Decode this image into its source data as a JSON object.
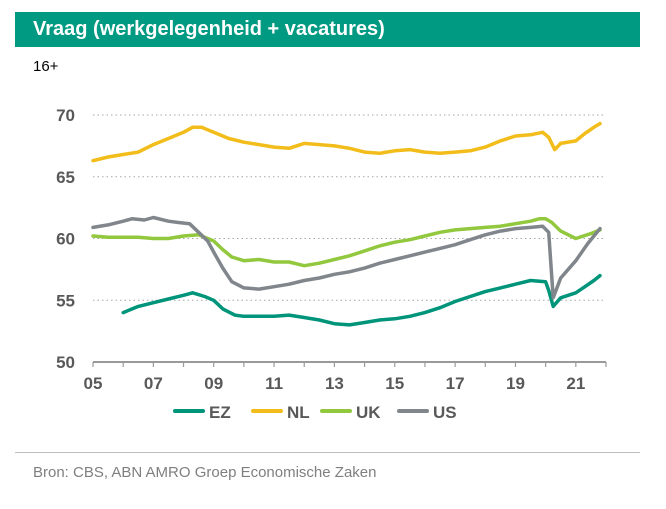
{
  "header": {
    "title": "Vraag (werkgelegenheid + vacatures)",
    "subtitle": "16+"
  },
  "source": "Bron: CBS, ABN AMRO Groep Economische Zaken",
  "colors": {
    "title_bg": "#009a82",
    "EZ": "#00947a",
    "NL": "#f2bd1a",
    "UK": "#92c83e",
    "US": "#80868b",
    "axis": "#9a9a9a",
    "tick_label": "#595959"
  },
  "chart_data": {
    "type": "line",
    "title": "Vraag (werkgelegenheid + vacatures)",
    "xlabel": "",
    "ylabel": "16+",
    "xlim": [
      2005,
      2022
    ],
    "ylim": [
      50,
      72
    ],
    "yticks": [
      50,
      55,
      60,
      65,
      70
    ],
    "xtick_values": [
      2005,
      2007,
      2009,
      2011,
      2013,
      2015,
      2017,
      2019,
      2021
    ],
    "xtick_labels": [
      "05",
      "07",
      "09",
      "11",
      "13",
      "15",
      "17",
      "19",
      "21"
    ],
    "legend": "bottom",
    "series": [
      {
        "name": "EZ",
        "x": [
          2006.0,
          2006.5,
          2007.0,
          2007.5,
          2008.0,
          2008.3,
          2008.7,
          2009.0,
          2009.3,
          2009.7,
          2010.0,
          2010.5,
          2011.0,
          2011.5,
          2012.0,
          2012.5,
          2013.0,
          2013.5,
          2014.0,
          2014.5,
          2015.0,
          2015.5,
          2016.0,
          2016.5,
          2017.0,
          2017.5,
          2018.0,
          2018.5,
          2019.0,
          2019.5,
          2020.0,
          2020.1,
          2020.25,
          2020.5,
          2021.0,
          2021.3,
          2021.6,
          2021.8
        ],
        "values": [
          54.0,
          54.5,
          54.8,
          55.1,
          55.4,
          55.6,
          55.3,
          55.0,
          54.3,
          53.8,
          53.7,
          53.7,
          53.7,
          53.8,
          53.6,
          53.4,
          53.1,
          53.0,
          53.2,
          53.4,
          53.5,
          53.7,
          54.0,
          54.4,
          54.9,
          55.3,
          55.7,
          56.0,
          56.3,
          56.6,
          56.5,
          55.8,
          54.5,
          55.2,
          55.6,
          56.1,
          56.6,
          57.0
        ]
      },
      {
        "name": "NL",
        "x": [
          2005.0,
          2005.5,
          2006.0,
          2006.5,
          2007.0,
          2007.5,
          2008.0,
          2008.3,
          2008.6,
          2009.0,
          2009.5,
          2010.0,
          2010.5,
          2011.0,
          2011.5,
          2012.0,
          2012.5,
          2013.0,
          2013.5,
          2014.0,
          2014.5,
          2015.0,
          2015.5,
          2016.0,
          2016.5,
          2017.0,
          2017.5,
          2018.0,
          2018.5,
          2019.0,
          2019.5,
          2019.9,
          2020.1,
          2020.3,
          2020.5,
          2021.0,
          2021.3,
          2021.6,
          2021.8
        ],
        "values": [
          66.3,
          66.6,
          66.8,
          67.0,
          67.6,
          68.1,
          68.6,
          69.0,
          69.0,
          68.6,
          68.1,
          67.8,
          67.6,
          67.4,
          67.3,
          67.7,
          67.6,
          67.5,
          67.3,
          67.0,
          66.9,
          67.1,
          67.2,
          67.0,
          66.9,
          67.0,
          67.1,
          67.4,
          67.9,
          68.3,
          68.4,
          68.6,
          68.2,
          67.2,
          67.7,
          67.9,
          68.5,
          69.0,
          69.3
        ]
      },
      {
        "name": "UK",
        "x": [
          2005.0,
          2005.5,
          2006.0,
          2006.5,
          2007.0,
          2007.5,
          2008.0,
          2008.5,
          2009.0,
          2009.3,
          2009.6,
          2010.0,
          2010.5,
          2011.0,
          2011.5,
          2012.0,
          2012.5,
          2013.0,
          2013.5,
          2014.0,
          2014.5,
          2015.0,
          2015.5,
          2016.0,
          2016.5,
          2017.0,
          2017.5,
          2018.0,
          2018.5,
          2019.0,
          2019.5,
          2019.8,
          2020.0,
          2020.2,
          2020.5,
          2021.0,
          2021.5,
          2021.8
        ],
        "values": [
          60.2,
          60.1,
          60.1,
          60.1,
          60.0,
          60.0,
          60.2,
          60.3,
          59.8,
          59.1,
          58.5,
          58.2,
          58.3,
          58.1,
          58.1,
          57.8,
          58.0,
          58.3,
          58.6,
          59.0,
          59.4,
          59.7,
          59.9,
          60.2,
          60.5,
          60.7,
          60.8,
          60.9,
          61.0,
          61.2,
          61.4,
          61.6,
          61.6,
          61.3,
          60.6,
          60.0,
          60.4,
          60.7
        ]
      },
      {
        "name": "US",
        "x": [
          2005.0,
          2005.5,
          2006.0,
          2006.3,
          2006.7,
          2007.0,
          2007.5,
          2007.8,
          2008.2,
          2008.5,
          2008.8,
          2009.0,
          2009.3,
          2009.6,
          2010.0,
          2010.5,
          2011.0,
          2011.5,
          2012.0,
          2012.5,
          2013.0,
          2013.5,
          2014.0,
          2014.5,
          2015.0,
          2015.5,
          2016.0,
          2016.5,
          2017.0,
          2017.5,
          2018.0,
          2018.5,
          2019.0,
          2019.5,
          2019.9,
          2020.1,
          2020.25,
          2020.5,
          2021.0,
          2021.4,
          2021.8
        ],
        "values": [
          60.9,
          61.1,
          61.4,
          61.6,
          61.5,
          61.7,
          61.4,
          61.3,
          61.2,
          60.5,
          59.8,
          58.9,
          57.6,
          56.5,
          56.0,
          55.9,
          56.1,
          56.3,
          56.6,
          56.8,
          57.1,
          57.3,
          57.6,
          58.0,
          58.3,
          58.6,
          58.9,
          59.2,
          59.5,
          59.9,
          60.3,
          60.6,
          60.8,
          60.9,
          61.0,
          60.5,
          55.2,
          56.8,
          58.2,
          59.6,
          60.8
        ]
      }
    ]
  }
}
